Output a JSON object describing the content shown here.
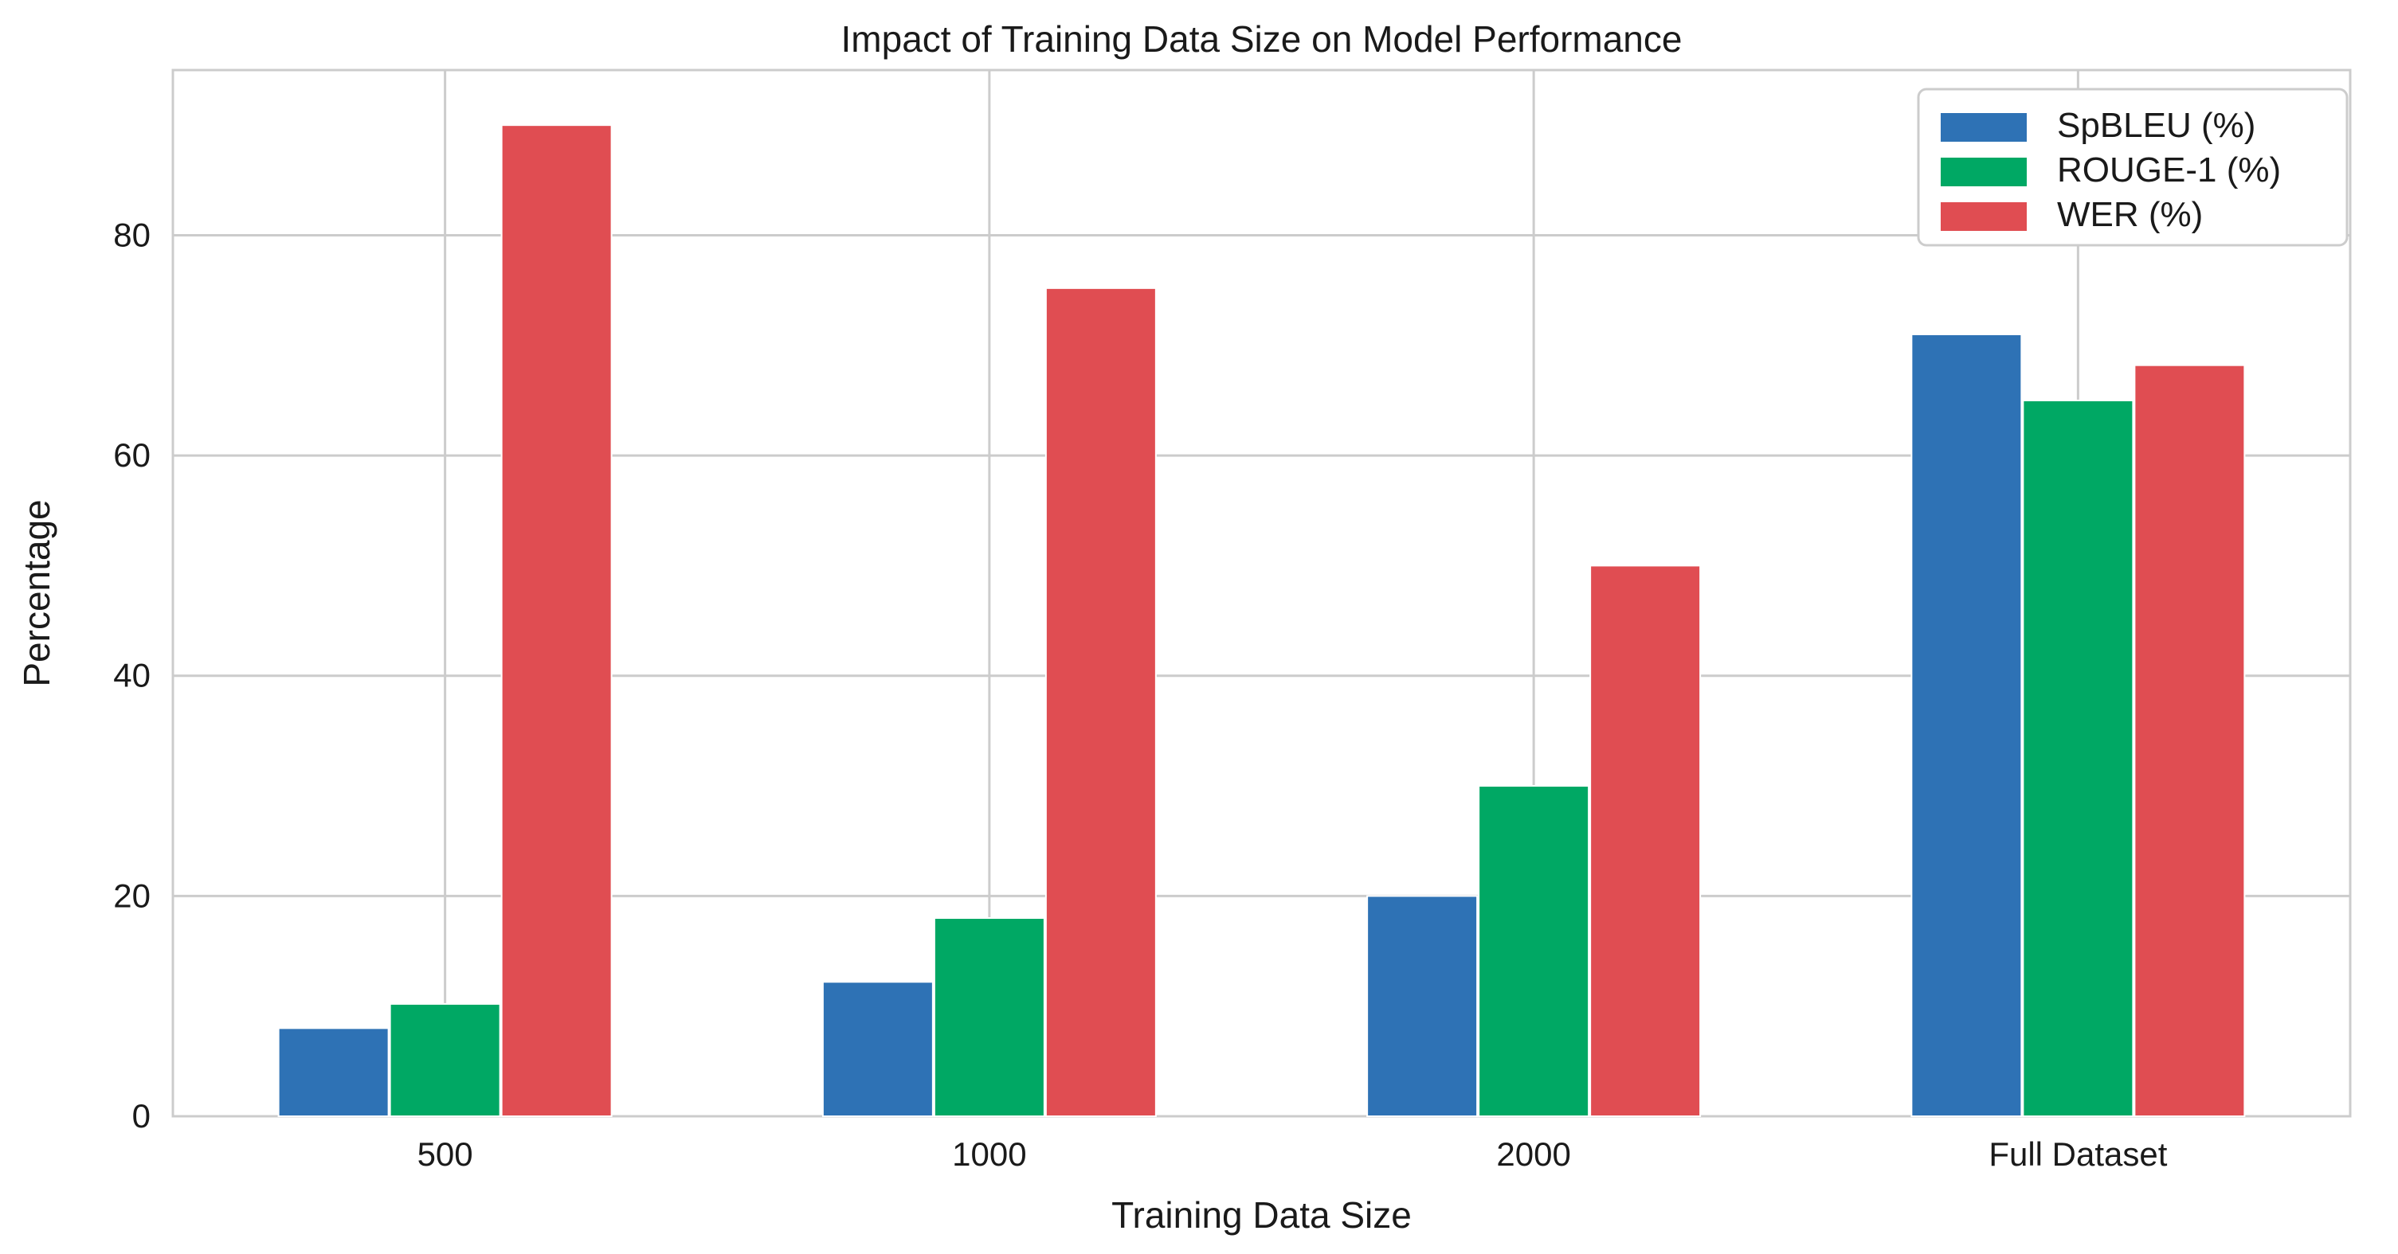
{
  "chart_data": {
    "type": "bar",
    "title": "Impact of Training Data Size on Model Performance",
    "xlabel": "Training Data Size",
    "ylabel": "Percentage",
    "categories": [
      "500",
      "1000",
      "2000",
      "Full Dataset"
    ],
    "series": [
      {
        "name": "SpBLEU (%)",
        "values": [
          8,
          12.2,
          20,
          71
        ],
        "color": "#2e72b5"
      },
      {
        "name": "ROUGE-1 (%)",
        "values": [
          10.2,
          18,
          30,
          65
        ],
        "color": "#00a864"
      },
      {
        "name": "WER (%)",
        "values": [
          90,
          75.2,
          50,
          68.2
        ],
        "color": "#e04d52"
      }
    ],
    "ylim": [
      0,
      95
    ],
    "yticks": [
      0,
      20,
      40,
      60,
      80
    ],
    "grid": true,
    "legend_position": "top-right"
  }
}
